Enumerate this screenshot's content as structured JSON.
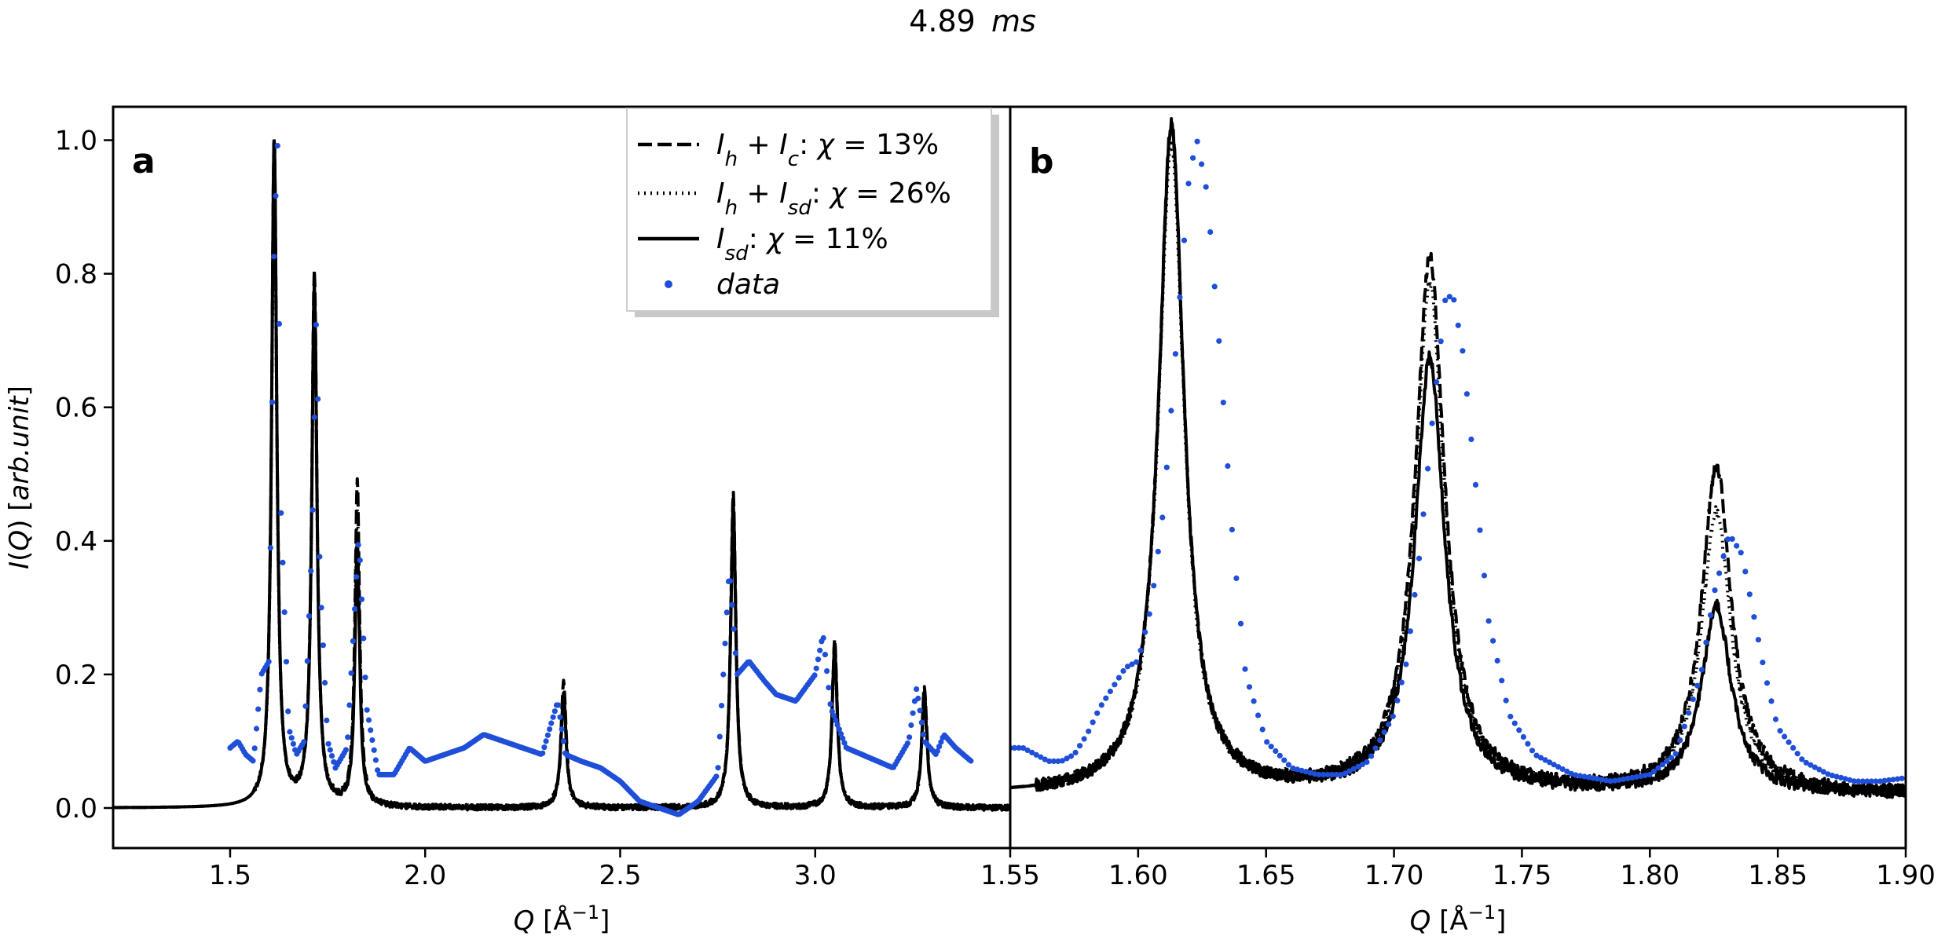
{
  "figure": {
    "title_value": "4.89",
    "title_unit": "ms"
  },
  "colors": {
    "data": "#1f4fd8",
    "model": "#000000"
  },
  "chart_data": [
    {
      "panel": "a",
      "type": "line",
      "xlabel": "Q [Å⁻¹]",
      "ylabel": "I(Q) [arb.unit]",
      "xlim": [
        1.2,
        3.5
      ],
      "ylim": [
        -0.06,
        1.05
      ],
      "xticks": [
        1.5,
        2.0,
        2.5,
        3.0
      ],
      "xtick_labels": [
        "1.5",
        "2.0",
        "2.5",
        "3.0"
      ],
      "yticks": [
        0.0,
        0.2,
        0.4,
        0.6,
        0.8,
        1.0
      ],
      "ytick_labels": [
        "0.0",
        "0.2",
        "0.4",
        "0.6",
        "0.8",
        "1.0"
      ],
      "background": 0.0,
      "peaks": [
        {
          "q": 1.613,
          "ih_ic": 1.0,
          "ih_isd": 0.97,
          "isd": 1.0,
          "w": 0.008
        },
        {
          "q": 1.716,
          "ih_ic": 0.8,
          "ih_isd": 0.78,
          "isd": 0.78,
          "w": 0.008
        },
        {
          "q": 1.826,
          "ih_ic": 0.49,
          "ih_isd": 0.44,
          "isd": 0.4,
          "w": 0.007
        },
        {
          "q": 2.355,
          "ih_ic": 0.19,
          "ih_isd": 0.17,
          "isd": 0.17,
          "w": 0.008
        },
        {
          "q": 2.79,
          "ih_ic": 0.47,
          "ih_isd": 0.45,
          "isd": 0.45,
          "w": 0.008
        },
        {
          "q": 3.05,
          "ih_ic": 0.25,
          "ih_isd": 0.24,
          "isd": 0.24,
          "w": 0.008
        },
        {
          "q": 3.28,
          "ih_ic": 0.18,
          "ih_isd": 0.17,
          "isd": 0.17,
          "w": 0.008
        }
      ],
      "data_points": [
        [
          1.5,
          0.09
        ],
        [
          1.52,
          0.1
        ],
        [
          1.54,
          0.08
        ],
        [
          1.56,
          0.07
        ],
        [
          1.58,
          0.2
        ],
        [
          1.6,
          0.22
        ],
        [
          1.613,
          0.85
        ],
        [
          1.622,
          1.0
        ],
        [
          1.63,
          0.45
        ],
        [
          1.65,
          0.12
        ],
        [
          1.67,
          0.08
        ],
        [
          1.69,
          0.1
        ],
        [
          1.71,
          0.4
        ],
        [
          1.722,
          0.77
        ],
        [
          1.73,
          0.35
        ],
        [
          1.75,
          0.1
        ],
        [
          1.77,
          0.06
        ],
        [
          1.8,
          0.09
        ],
        [
          1.83,
          0.41
        ],
        [
          1.85,
          0.15
        ],
        [
          1.88,
          0.05
        ],
        [
          1.92,
          0.05
        ],
        [
          1.96,
          0.09
        ],
        [
          2.0,
          0.07
        ],
        [
          2.05,
          0.08
        ],
        [
          2.1,
          0.09
        ],
        [
          2.15,
          0.11
        ],
        [
          2.2,
          0.1
        ],
        [
          2.25,
          0.09
        ],
        [
          2.3,
          0.08
        ],
        [
          2.34,
          0.16
        ],
        [
          2.36,
          0.08
        ],
        [
          2.4,
          0.07
        ],
        [
          2.45,
          0.06
        ],
        [
          2.5,
          0.04
        ],
        [
          2.55,
          0.01
        ],
        [
          2.6,
          0.0
        ],
        [
          2.65,
          -0.01
        ],
        [
          2.7,
          0.01
        ],
        [
          2.75,
          0.05
        ],
        [
          2.78,
          0.36
        ],
        [
          2.8,
          0.2
        ],
        [
          2.83,
          0.22
        ],
        [
          2.87,
          0.19
        ],
        [
          2.9,
          0.17
        ],
        [
          2.95,
          0.16
        ],
        [
          3.0,
          0.2
        ],
        [
          3.02,
          0.26
        ],
        [
          3.04,
          0.15
        ],
        [
          3.08,
          0.09
        ],
        [
          3.12,
          0.08
        ],
        [
          3.16,
          0.07
        ],
        [
          3.2,
          0.06
        ],
        [
          3.24,
          0.1
        ],
        [
          3.26,
          0.18
        ],
        [
          3.28,
          0.1
        ],
        [
          3.31,
          0.08
        ],
        [
          3.33,
          0.11
        ],
        [
          3.36,
          0.09
        ],
        [
          3.4,
          0.07
        ]
      ]
    },
    {
      "panel": "b",
      "type": "line",
      "xlabel": "Q [Å⁻¹]",
      "ylabel": "",
      "xlim": [
        1.55,
        1.9
      ],
      "ylim": [
        -0.06,
        1.05
      ],
      "xticks": [
        1.55,
        1.6,
        1.65,
        1.7,
        1.75,
        1.8,
        1.85,
        1.9
      ],
      "xtick_labels": [
        "1.55",
        "1.60",
        "1.65",
        "1.70",
        "1.75",
        "1.80",
        "1.85",
        "1.90"
      ],
      "background": 0.02,
      "peaks": [
        {
          "q": 1.613,
          "ih_ic": 1.0,
          "ih_isd": 0.97,
          "isd": 1.0,
          "w": 0.006
        },
        {
          "q": 1.714,
          "ih_ic": 0.8,
          "ih_isd": 0.76,
          "isd": 0.65,
          "w": 0.007
        },
        {
          "q": 1.826,
          "ih_ic": 0.49,
          "ih_isd": 0.42,
          "isd": 0.28,
          "w": 0.007
        }
      ],
      "data_points": [
        [
          1.55,
          0.09
        ],
        [
          1.555,
          0.09
        ],
        [
          1.56,
          0.08
        ],
        [
          1.565,
          0.07
        ],
        [
          1.57,
          0.07
        ],
        [
          1.575,
          0.08
        ],
        [
          1.58,
          0.11
        ],
        [
          1.585,
          0.15
        ],
        [
          1.59,
          0.18
        ],
        [
          1.595,
          0.21
        ],
        [
          1.6,
          0.22
        ],
        [
          1.605,
          0.3
        ],
        [
          1.61,
          0.45
        ],
        [
          1.615,
          0.7
        ],
        [
          1.62,
          0.95
        ],
        [
          1.623,
          1.0
        ],
        [
          1.627,
          0.92
        ],
        [
          1.632,
          0.68
        ],
        [
          1.637,
          0.4
        ],
        [
          1.642,
          0.2
        ],
        [
          1.65,
          0.1
        ],
        [
          1.66,
          0.06
        ],
        [
          1.67,
          0.05
        ],
        [
          1.68,
          0.05
        ],
        [
          1.69,
          0.07
        ],
        [
          1.7,
          0.14
        ],
        [
          1.705,
          0.22
        ],
        [
          1.71,
          0.38
        ],
        [
          1.715,
          0.58
        ],
        [
          1.72,
          0.76
        ],
        [
          1.723,
          0.77
        ],
        [
          1.727,
          0.68
        ],
        [
          1.732,
          0.48
        ],
        [
          1.737,
          0.28
        ],
        [
          1.745,
          0.14
        ],
        [
          1.755,
          0.08
        ],
        [
          1.77,
          0.05
        ],
        [
          1.785,
          0.04
        ],
        [
          1.8,
          0.05
        ],
        [
          1.81,
          0.08
        ],
        [
          1.82,
          0.2
        ],
        [
          1.825,
          0.32
        ],
        [
          1.831,
          0.41
        ],
        [
          1.836,
          0.38
        ],
        [
          1.84,
          0.3
        ],
        [
          1.845,
          0.2
        ],
        [
          1.85,
          0.12
        ],
        [
          1.86,
          0.07
        ],
        [
          1.87,
          0.05
        ],
        [
          1.88,
          0.04
        ],
        [
          1.89,
          0.04
        ],
        [
          1.9,
          0.045
        ]
      ]
    }
  ],
  "legend": {
    "items": [
      {
        "key": "ih_ic",
        "style": "dashed",
        "label_left": "Ih+Ic",
        "chi_label": ": χ = 13%"
      },
      {
        "key": "ih_isd",
        "style": "dotted",
        "label_left": "Ih+Isd",
        "chi_label": ": χ = 26%"
      },
      {
        "key": "isd",
        "style": "solid",
        "label_left": "Isd",
        "chi_label": ": χ = 11%"
      },
      {
        "key": "data",
        "style": "markers",
        "label_left": "data",
        "chi_label": ""
      }
    ]
  }
}
